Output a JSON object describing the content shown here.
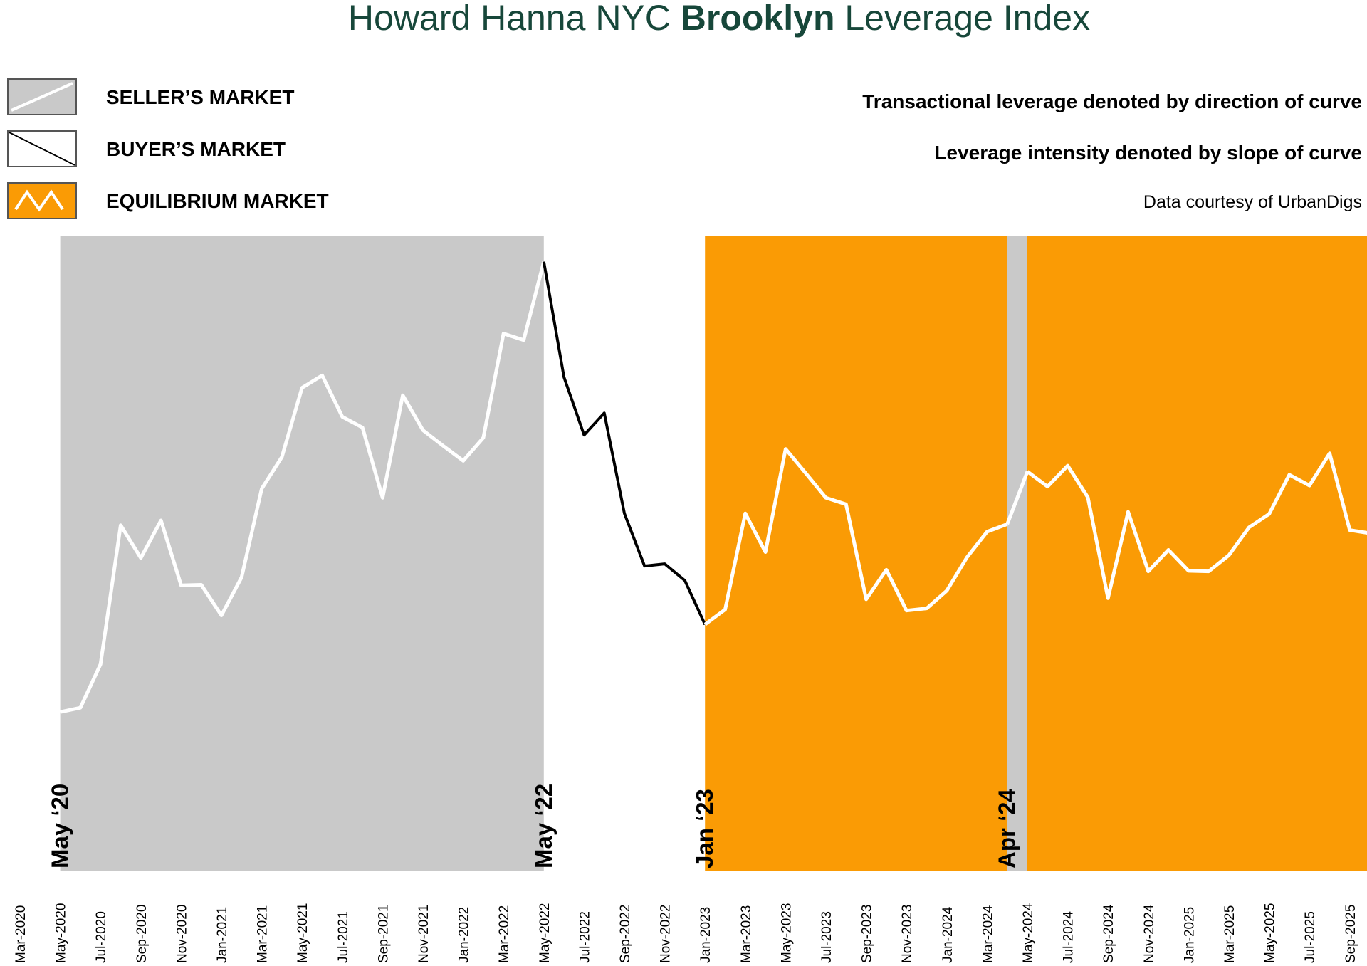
{
  "title": {
    "prefix": "Howard Hanna NYC ",
    "bold": "Brooklyn",
    "suffix": " Leverage Index",
    "color": "#17473a"
  },
  "legend": [
    {
      "label": "SELLER’S MARKET",
      "kind": "seller",
      "fill": "#c9c9c9",
      "line": "#ffffff"
    },
    {
      "label": "BUYER’S MARKET",
      "kind": "buyer",
      "fill": "#ffffff",
      "line": "#000000"
    },
    {
      "label": "EQUILIBRIUM MARKET",
      "kind": "equilibrium",
      "fill": "#fa9b05",
      "line": "#ffffff"
    }
  ],
  "notes": [
    {
      "text": "Transactional leverage denoted by direction of curve",
      "bold": true
    },
    {
      "text": "Leverage intensity denoted by slope of curve",
      "bold": true
    },
    {
      "text": "Data courtesy of UrbanDigs",
      "bold": false
    }
  ],
  "colors": {
    "seller": "#c9c9c9",
    "equilibrium": "#fa9b05",
    "buyer_line": "#000000",
    "market_line": "#ffffff"
  },
  "chart_data": {
    "type": "line",
    "y_axis_visible": false,
    "ylim": [
      0,
      100
    ],
    "x_ticks": [
      "Mar-2020",
      "May-2020",
      "Jul-2020",
      "Sep-2020",
      "Nov-2020",
      "Jan-2021",
      "Mar-2021",
      "May-2021",
      "Jul-2021",
      "Sep-2021",
      "Nov-2021",
      "Jan-2022",
      "Mar-2022",
      "May-2022",
      "Jul-2022",
      "Sep-2022",
      "Nov-2022",
      "Jan-2023",
      "Mar-2023",
      "May-2023",
      "Jul-2023",
      "Sep-2023",
      "Nov-2023",
      "Jan-2024",
      "Mar-2024",
      "May-2024",
      "Jul-2024",
      "Sep-2024",
      "Nov-2024",
      "Jan-2025",
      "Mar-2025",
      "May-2025",
      "Jul-2025",
      "Sep-2025"
    ],
    "x": [
      "May-2020",
      "Jun-2020",
      "Jul-2020",
      "Aug-2020",
      "Sep-2020",
      "Oct-2020",
      "Nov-2020",
      "Dec-2020",
      "Jan-2021",
      "Feb-2021",
      "Mar-2021",
      "Apr-2021",
      "May-2021",
      "Jun-2021",
      "Jul-2021",
      "Aug-2021",
      "Sep-2021",
      "Oct-2021",
      "Nov-2021",
      "Dec-2021",
      "Jan-2022",
      "Feb-2022",
      "Mar-2022",
      "Apr-2022",
      "May-2022",
      "Jun-2022",
      "Jul-2022",
      "Aug-2022",
      "Sep-2022",
      "Oct-2022",
      "Nov-2022",
      "Dec-2022",
      "Jan-2023",
      "Feb-2023",
      "Mar-2023",
      "Apr-2023",
      "May-2023",
      "Jun-2023",
      "Jul-2023",
      "Aug-2023",
      "Sep-2023",
      "Oct-2023",
      "Nov-2023",
      "Dec-2023",
      "Jan-2024",
      "Feb-2024",
      "Mar-2024",
      "Apr-2024",
      "May-2024",
      "Jun-2024",
      "Jul-2024",
      "Aug-2024",
      "Sep-2024",
      "Oct-2024",
      "Nov-2024",
      "Dec-2024",
      "Jan-2025",
      "Feb-2025",
      "Mar-2025",
      "Apr-2025",
      "May-2025",
      "Jun-2025",
      "Jul-2025",
      "Aug-2025",
      "Sep-2025",
      "Oct-2025"
    ],
    "values": [
      13.9,
      14.7,
      22.8,
      48.7,
      42.6,
      49.6,
      37.5,
      37.6,
      31.9,
      39.0,
      55.5,
      61.4,
      74.3,
      76.6,
      68.9,
      66.9,
      53.8,
      72.9,
      66.4,
      63.5,
      60.7,
      65.0,
      84.4,
      83.2,
      97.8,
      76.3,
      65.5,
      69.6,
      50.9,
      41.1,
      41.5,
      38.4,
      30.2,
      33.0,
      50.9,
      43.7,
      62.9,
      58.4,
      53.8,
      52.6,
      34.9,
      40.4,
      32.8,
      33.2,
      36.5,
      42.7,
      47.5,
      48.9,
      58.7,
      55.9,
      59.8,
      53.9,
      35.1,
      51.2,
      40.1,
      44.1,
      40.2,
      40.1,
      43.1,
      48.3,
      50.8,
      58.1,
      56.1,
      62.1,
      47.8,
      47.2
    ],
    "regimes": [
      {
        "type": "seller",
        "start": "May-2020",
        "end": "May-2022"
      },
      {
        "type": "buyer",
        "start": "May-2022",
        "end": "Jan-2023"
      },
      {
        "type": "equilibrium",
        "start": "Jan-2023",
        "end": "Apr-2024"
      },
      {
        "type": "seller",
        "start": "Apr-2024",
        "end": "May-2024"
      },
      {
        "type": "equilibrium",
        "start": "May-2024",
        "end": "Oct-2025"
      }
    ],
    "annotations": [
      {
        "text": "May ‘20",
        "at": "May-2020"
      },
      {
        "text": "May ‘22",
        "at": "May-2022"
      },
      {
        "text": "Jan ‘23",
        "at": "Jan-2023"
      },
      {
        "text": "Apr ‘24",
        "at": "Apr-2024"
      }
    ]
  }
}
